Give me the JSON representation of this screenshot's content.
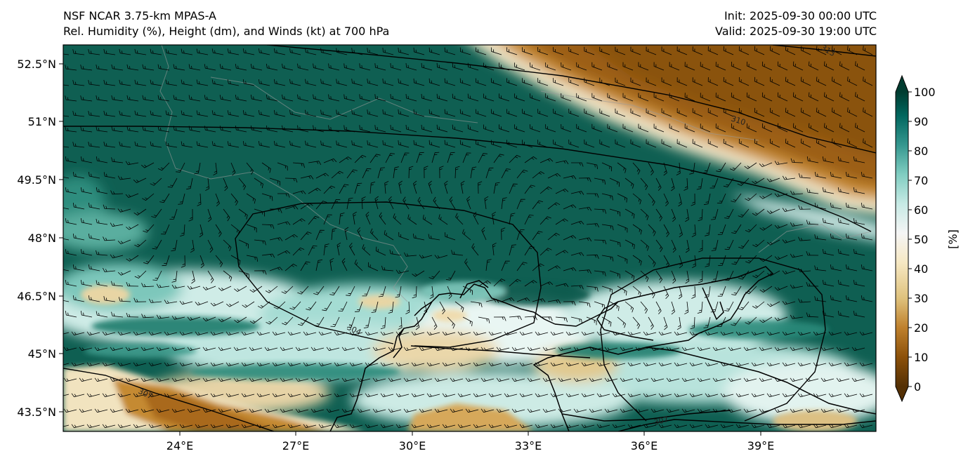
{
  "titles": {
    "left_line1": "NSF NCAR 3.75-km MPAS-A",
    "left_line2": "Rel. Humidity (%), Height (dm), and Winds (kt) at 700 hPa",
    "right_line1": "Init: 2025-09-30 00:00 UTC",
    "right_line2": "Valid: 2025-09-30 19:00 UTC"
  },
  "map": {
    "lon_range": [
      21,
      42
    ],
    "lat_range": [
      43,
      53
    ],
    "lat_ticks": [
      "52.5°N",
      "51°N",
      "49.5°N",
      "48°N",
      "46.5°N",
      "45°N",
      "43.5°N"
    ],
    "lat_tick_values": [
      52.5,
      51,
      49.5,
      48,
      46.5,
      45,
      43.5
    ],
    "lon_ticks": [
      "24°E",
      "27°E",
      "30°E",
      "33°E",
      "36°E",
      "39°E"
    ],
    "lon_tick_values": [
      24,
      27,
      30,
      33,
      36,
      39
    ],
    "contour_labels": [
      "313",
      "310",
      "304",
      "307",
      "307"
    ],
    "field": "relative humidity",
    "contours": "geopotential height",
    "winds": "wind barbs"
  },
  "colorbar": {
    "ticks": [
      "0",
      "10",
      "20",
      "30",
      "40",
      "50",
      "60",
      "70",
      "80",
      "90",
      "100"
    ],
    "label": "[%]",
    "colormap": "BrBG",
    "colors": [
      "#543005",
      "#8c510a",
      "#bf812d",
      "#dfc27d",
      "#f6e8c3",
      "#f5f5f5",
      "#c7eae5",
      "#80cdc1",
      "#35978f",
      "#01665e",
      "#003c30"
    ]
  }
}
